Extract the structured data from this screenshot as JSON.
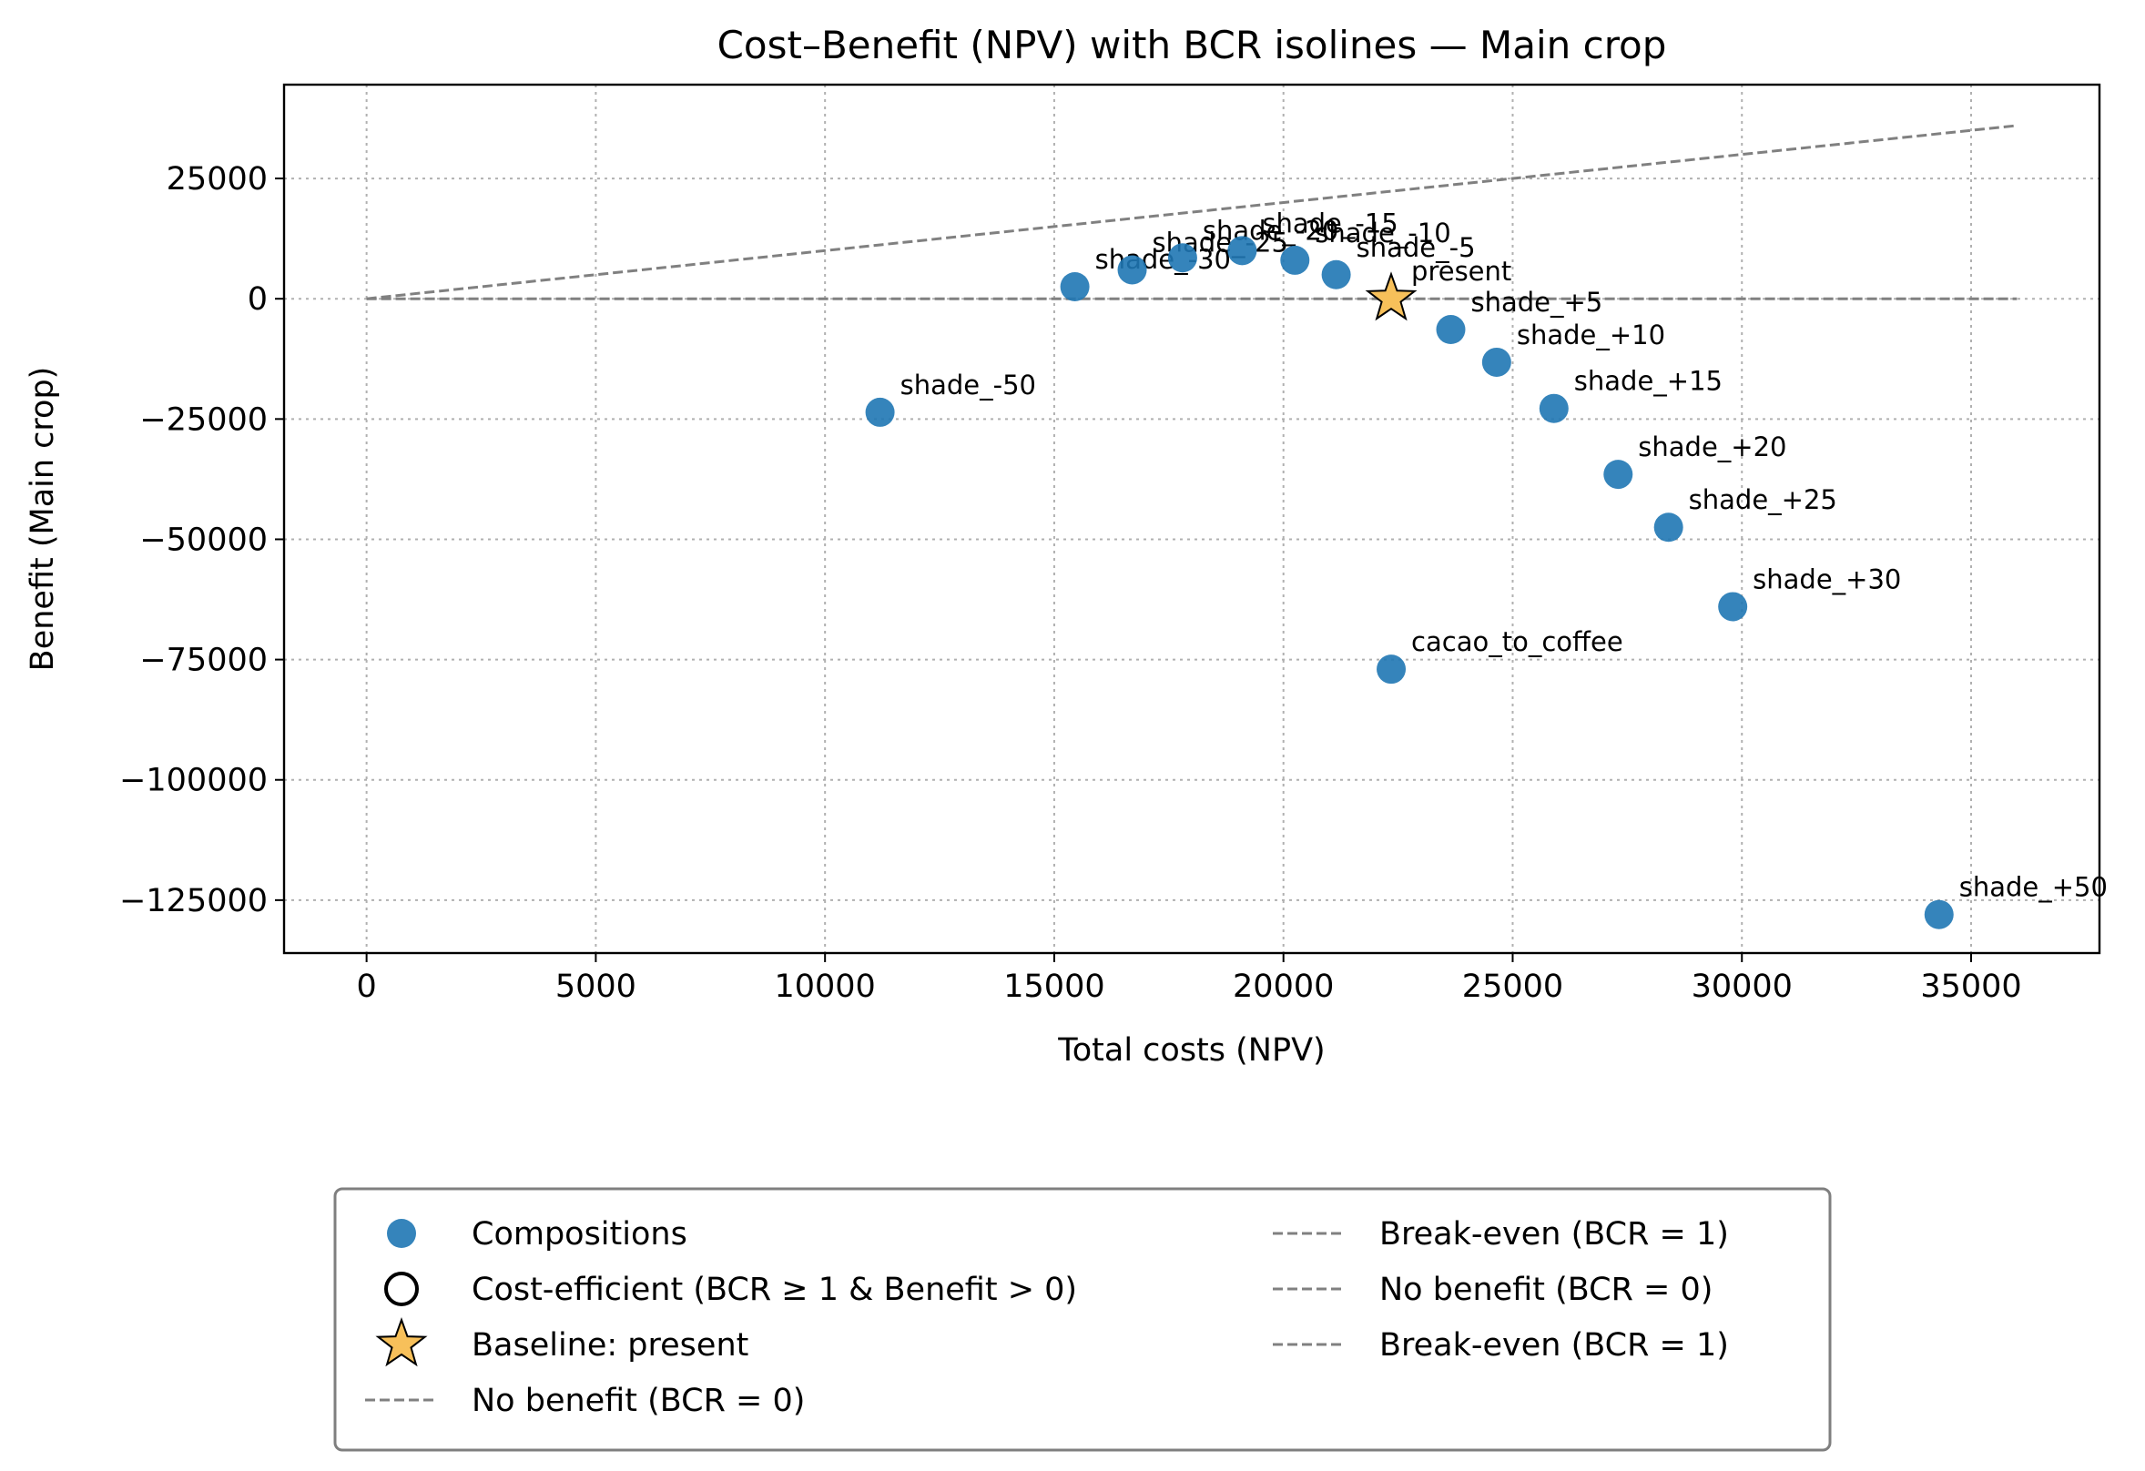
{
  "chart_data": {
    "type": "scatter",
    "title": "Cost–Benefit (NPV) with BCR isolines — Main crop",
    "xlabel": "Total costs (NPV)",
    "ylabel": "Benefit (Main crop)",
    "xlim": [
      -1800,
      37800
    ],
    "ylim": [
      -136000,
      44500
    ],
    "xticks": [
      0,
      5000,
      10000,
      15000,
      20000,
      25000,
      30000,
      35000
    ],
    "xtick_labels": [
      "0",
      "5000",
      "10000",
      "15000",
      "20000",
      "25000",
      "30000",
      "35000"
    ],
    "yticks": [
      25000,
      0,
      -25000,
      -50000,
      -75000,
      -100000,
      -125000
    ],
    "ytick_labels": [
      "25000",
      "0",
      "−25000",
      "−50000",
      "−75000",
      "−100000",
      "−125000"
    ],
    "grid": true,
    "colors": {
      "points": "#1f77b4",
      "baseline": "#f7c05a",
      "isoline": "#808080"
    },
    "points": [
      {
        "label": "shade_-50",
        "x": 11200,
        "y": -23600
      },
      {
        "label": "shade_-30",
        "x": 15450,
        "y": 2500
      },
      {
        "label": "shade_-25",
        "x": 16700,
        "y": 6000
      },
      {
        "label": "shade_-20",
        "x": 17800,
        "y": 8500
      },
      {
        "label": "shade_-15",
        "x": 19100,
        "y": 10000
      },
      {
        "label": "shade_-10",
        "x": 20250,
        "y": 8000
      },
      {
        "label": "shade_-5",
        "x": 21150,
        "y": 5000
      },
      {
        "label": "shade_+5",
        "x": 23650,
        "y": -6400
      },
      {
        "label": "shade_+10",
        "x": 24650,
        "y": -13200
      },
      {
        "label": "shade_+15",
        "x": 25900,
        "y": -22800
      },
      {
        "label": "shade_+20",
        "x": 27300,
        "y": -36500
      },
      {
        "label": "shade_+25",
        "x": 28400,
        "y": -47500
      },
      {
        "label": "shade_+30",
        "x": 29800,
        "y": -64000
      },
      {
        "label": "cacao_to_coffee",
        "x": 22350,
        "y": -77000
      },
      {
        "label": "shade_+50",
        "x": 34300,
        "y": -128000
      }
    ],
    "baseline": {
      "label": "present",
      "x": 22350,
      "y": 0
    },
    "isolines": [
      {
        "bcr": 1,
        "x0": 0,
        "x1": 36000
      },
      {
        "bcr": 0,
        "x0": 0,
        "x1": 36000
      }
    ],
    "legend": {
      "placement": "bottom",
      "left": [
        {
          "marker": "circle",
          "label": "Compositions"
        },
        {
          "marker": "hollow-circle",
          "label": "Cost-efficient (BCR ≥ 1 & Benefit > 0)"
        },
        {
          "marker": "star",
          "label": "Baseline: present"
        },
        {
          "marker": "dash",
          "label": "No benefit (BCR = 0)"
        }
      ],
      "right": [
        {
          "marker": "dash",
          "label": "Break-even (BCR = 1)"
        },
        {
          "marker": "dash",
          "label": "No benefit (BCR = 0)"
        },
        {
          "marker": "dash",
          "label": "Break-even (BCR = 1)"
        }
      ]
    }
  }
}
